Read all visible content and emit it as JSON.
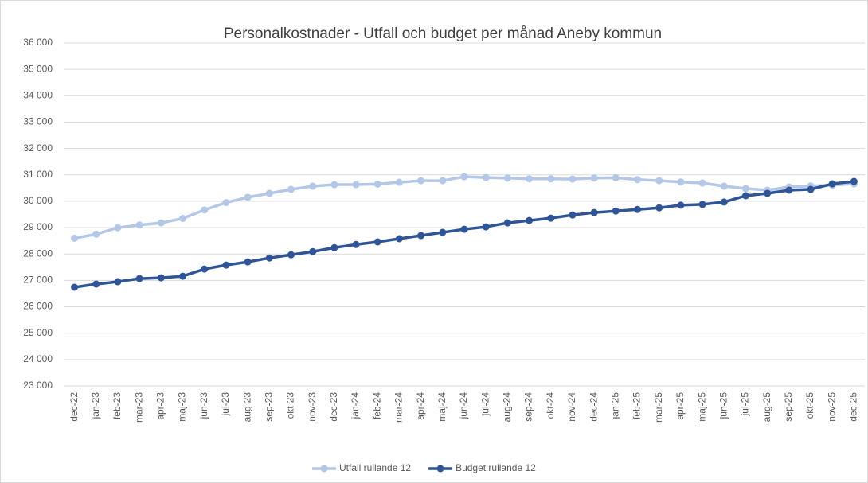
{
  "chart_data": {
    "type": "line",
    "title": "Personalkostnader -  Utfall och budget per månad Aneby kommun",
    "categories": [
      "dec-22",
      "jan-23",
      "feb-23",
      "mar-23",
      "apr-23",
      "maj-23",
      "jun-23",
      "jul-23",
      "aug-23",
      "sep-23",
      "okt-23",
      "nov-23",
      "dec-23",
      "jan-24",
      "feb-24",
      "mar-24",
      "apr-24",
      "maj-24",
      "jun-24",
      "jul-24",
      "aug-24",
      "sep-24",
      "okt-24",
      "nov-24",
      "dec-24",
      "jan-25",
      "feb-25",
      "mar-25",
      "apr-25",
      "maj-25",
      "jun-25",
      "jul-25",
      "aug-25",
      "sep-25",
      "okt-25",
      "nov-25",
      "dec-25"
    ],
    "series": [
      {
        "name": "Utfall rullande 12",
        "color": "#b4c7e7",
        "values": [
          28600,
          28750,
          29000,
          29100,
          29180,
          29350,
          29670,
          29950,
          30150,
          30300,
          30450,
          30570,
          30630,
          30630,
          30650,
          30720,
          30780,
          30780,
          30930,
          30900,
          30880,
          30850,
          30850,
          30840,
          30880,
          30890,
          30820,
          30780,
          30730,
          30690,
          30570,
          30480,
          30420,
          30540,
          30580,
          30610,
          30660
        ]
      },
      {
        "name": "Budget rullande 12",
        "color": "#2f5597",
        "values": [
          26740,
          26860,
          26950,
          27070,
          27100,
          27160,
          27430,
          27580,
          27700,
          27850,
          27970,
          28090,
          28240,
          28360,
          28460,
          28580,
          28700,
          28820,
          28940,
          29030,
          29180,
          29270,
          29360,
          29480,
          29570,
          29630,
          29690,
          29750,
          29850,
          29880,
          29970,
          30210,
          30300,
          30420,
          30450,
          30660,
          30750
        ]
      }
    ],
    "ylim": [
      23000,
      36000
    ],
    "yticks": [
      {
        "value": 23000,
        "label": "23 000"
      },
      {
        "value": 24000,
        "label": "24 000"
      },
      {
        "value": 25000,
        "label": "25 000"
      },
      {
        "value": 26000,
        "label": "26 000"
      },
      {
        "value": 27000,
        "label": "27 000"
      },
      {
        "value": 28000,
        "label": "28 000"
      },
      {
        "value": 29000,
        "label": "29 000"
      },
      {
        "value": 30000,
        "label": "30 000"
      },
      {
        "value": 31000,
        "label": "31 000"
      },
      {
        "value": 32000,
        "label": "32 000"
      },
      {
        "value": 33000,
        "label": "33 000"
      },
      {
        "value": 34000,
        "label": "34 000"
      },
      {
        "value": 35000,
        "label": "35 000"
      },
      {
        "value": 36000,
        "label": "36 000"
      }
    ],
    "grid": true,
    "legend": "bottom"
  }
}
